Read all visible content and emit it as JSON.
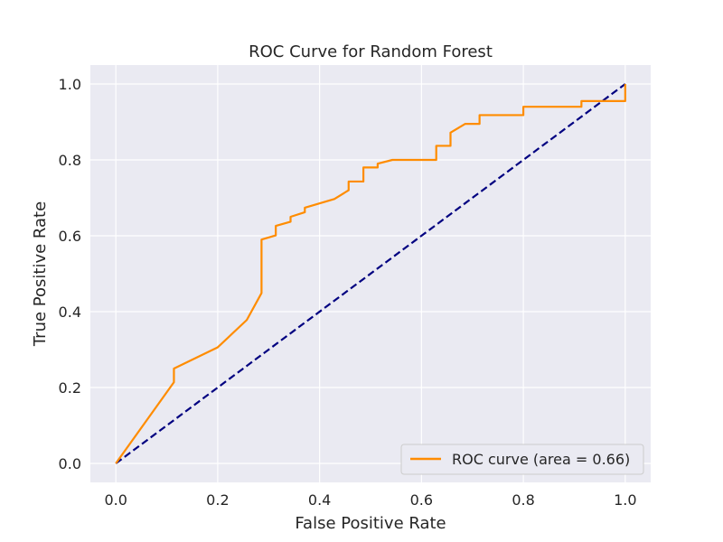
{
  "chart_data": {
    "type": "line",
    "title": "ROC Curve for Random Forest",
    "xlabel": "False Positive Rate",
    "ylabel": "True Positive Rate",
    "xlim": [
      -0.05,
      1.05
    ],
    "ylim": [
      -0.05,
      1.05
    ],
    "xticks": [
      0.0,
      0.2,
      0.4,
      0.6,
      0.8,
      1.0
    ],
    "yticks": [
      0.0,
      0.2,
      0.4,
      0.6,
      0.8,
      1.0
    ],
    "xtick_labels": [
      "0.0",
      "0.2",
      "0.4",
      "0.6",
      "0.8",
      "1.0"
    ],
    "ytick_labels": [
      "0.0",
      "0.2",
      "0.4",
      "0.6",
      "0.8",
      "1.0"
    ],
    "grid": true,
    "legend_position": "bottom-right",
    "series": [
      {
        "name": "ROC curve (area = 0.66)",
        "color": "#ff8c00",
        "line_style": "solid",
        "x": [
          0.0,
          0.114,
          0.114,
          0.2,
          0.257,
          0.286,
          0.286,
          0.314,
          0.314,
          0.343,
          0.343,
          0.371,
          0.371,
          0.429,
          0.457,
          0.457,
          0.486,
          0.486,
          0.514,
          0.514,
          0.543,
          0.629,
          0.629,
          0.657,
          0.657,
          0.686,
          0.714,
          0.714,
          0.8,
          0.8,
          0.914,
          0.914,
          1.0,
          1.0
        ],
        "y": [
          0.0,
          0.214,
          0.25,
          0.306,
          0.378,
          0.449,
          0.59,
          0.601,
          0.626,
          0.637,
          0.65,
          0.662,
          0.674,
          0.697,
          0.72,
          0.743,
          0.743,
          0.78,
          0.78,
          0.79,
          0.8,
          0.8,
          0.837,
          0.837,
          0.872,
          0.895,
          0.895,
          0.918,
          0.918,
          0.94,
          0.94,
          0.955,
          0.955,
          1.0
        ]
      },
      {
        "name": "",
        "color": "#000080",
        "line_style": "dashed",
        "x": [
          0.0,
          1.0
        ],
        "y": [
          0.0,
          1.0
        ]
      }
    ]
  }
}
